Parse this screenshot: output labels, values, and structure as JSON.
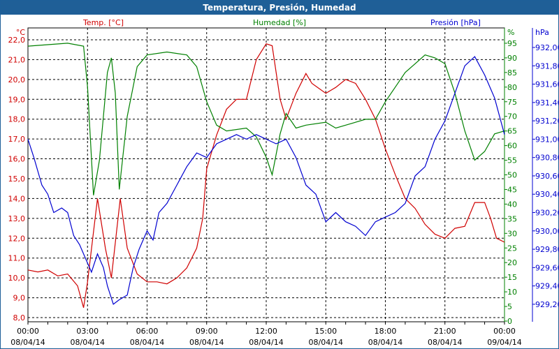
{
  "chart_data": {
    "type": "line",
    "title": "Temperatura, Presión, Humedad",
    "axes": {
      "temp": {
        "label": "Temp. [°C]",
        "unit": "°C",
        "range": [
          8,
          22
        ],
        "ticks": [
          "22,0",
          "21,0",
          "20,0",
          "19,0",
          "18,0",
          "17,0",
          "16,0",
          "15,0",
          "14,0",
          "13,0",
          "12,0",
          "11,0",
          "10,0",
          "9,0",
          "8,0"
        ],
        "color": "#d00000"
      },
      "humidity": {
        "label": "Humedad [%]",
        "unit": "%",
        "range": [
          0,
          95
        ],
        "ticks": [
          "95",
          "90",
          "85",
          "80",
          "75",
          "70",
          "65",
          "60",
          "55",
          "50",
          "45",
          "40",
          "35",
          "30",
          "25",
          "20",
          "15",
          "10",
          "5",
          "0"
        ],
        "color": "#008000"
      },
      "pressure": {
        "label": "Presión [hPa]",
        "unit": "hPa",
        "range": [
          929.2,
          932.0
        ],
        "ticks": [
          "932,00",
          "931,80",
          "931,60",
          "931,40",
          "931,20",
          "931,00",
          "930,80",
          "930,60",
          "930,40",
          "930,20",
          "930,00",
          "929,80",
          "929,60",
          "929,40",
          "929,20"
        ],
        "color": "#0000d0"
      }
    },
    "x_ticks": [
      [
        "00:00",
        "08/04/14"
      ],
      [
        "03:00",
        "08/04/14"
      ],
      [
        "06:00",
        "08/04/14"
      ],
      [
        "09:00",
        "08/04/14"
      ],
      [
        "12:00",
        "08/04/14"
      ],
      [
        "15:00",
        "08/04/14"
      ],
      [
        "18:00",
        "08/04/14"
      ],
      [
        "21:00",
        "08/04/14"
      ],
      [
        "00:00",
        "09/04/14"
      ]
    ],
    "grid": true,
    "series": [
      {
        "name": "Temp. [°C]",
        "axis": "temp",
        "color": "#d00000",
        "x": [
          0,
          0.5,
          1,
          1.5,
          2,
          2.5,
          2.8,
          3,
          3.5,
          3.9,
          4.2,
          4.65,
          5,
          5.5,
          6,
          6.5,
          7,
          7.5,
          8,
          8.5,
          8.8,
          9,
          9.5,
          10,
          10.5,
          11,
          11.5,
          12,
          12.3,
          12.7,
          13,
          13.5,
          14,
          14.3,
          15,
          15.5,
          16,
          16.5,
          17,
          17.5,
          18,
          18.5,
          19,
          19.5,
          20,
          20.5,
          21,
          21.5,
          22,
          22.5,
          23,
          23.3,
          23.6,
          24
        ],
        "values": [
          10.4,
          10.3,
          10.4,
          10.1,
          10.2,
          9.6,
          8.5,
          9.8,
          14,
          11.5,
          10,
          14,
          11.5,
          10.2,
          9.8,
          9.8,
          9.7,
          10,
          10.5,
          11.5,
          13,
          15.5,
          17.2,
          18.5,
          19,
          19,
          21,
          21.8,
          21.7,
          19,
          18,
          19.3,
          20.3,
          19.8,
          19.3,
          19.6,
          20,
          19.8,
          19,
          18,
          16.5,
          15.2,
          14,
          13.5,
          12.7,
          12.2,
          12,
          12.5,
          12.6,
          13.8,
          13.8,
          13,
          12,
          11.8
        ]
      },
      {
        "name": "Humedad [%]",
        "axis": "humidity",
        "color": "#008000",
        "x": [
          0,
          1,
          2,
          2.8,
          3,
          3.3,
          3.6,
          4,
          4.2,
          4.4,
          4.6,
          5,
          5.5,
          6,
          7,
          8,
          8.5,
          9,
          9.5,
          10,
          11,
          11.5,
          12,
          12.3,
          12.7,
          13,
          13.5,
          14,
          15,
          15.5,
          16,
          17,
          17.5,
          18,
          18.5,
          19,
          19.5,
          20,
          20.5,
          21,
          21.5,
          22,
          22.5,
          23,
          23.5,
          24
        ],
        "values": [
          94,
          94.5,
          95,
          94,
          80,
          43,
          55,
          85,
          90,
          78,
          45,
          70,
          87,
          91,
          92,
          91,
          87,
          75,
          67,
          65,
          66,
          63,
          56,
          50,
          64,
          71,
          66,
          67,
          68,
          66,
          67,
          69,
          69,
          75,
          80,
          85,
          88,
          91,
          90,
          88,
          78,
          65,
          55,
          58,
          64,
          65
        ]
      },
      {
        "name": "Presión [hPa]",
        "axis": "pressure",
        "color": "#0000d0",
        "x": [
          0,
          0.3,
          0.7,
          1,
          1.3,
          1.7,
          2,
          2.3,
          2.6,
          2.9,
          3.2,
          3.5,
          3.8,
          4,
          4.3,
          4.6,
          5,
          5.3,
          5.6,
          6,
          6.3,
          6.6,
          7,
          7.5,
          8,
          8.5,
          9,
          9.5,
          10,
          10.5,
          11,
          11.5,
          12,
          12.5,
          13,
          13.5,
          14,
          14.5,
          15,
          15.5,
          16,
          16.5,
          17,
          17.5,
          18,
          18.5,
          19,
          19.5,
          20,
          20.5,
          21,
          21.5,
          22,
          22.5,
          23,
          23.5,
          24
        ],
        "values": [
          931.0,
          930.8,
          930.5,
          930.4,
          930.2,
          930.25,
          930.2,
          929.95,
          929.85,
          929.7,
          929.55,
          929.75,
          929.6,
          929.4,
          929.2,
          929.25,
          929.3,
          929.6,
          929.8,
          930.0,
          929.9,
          930.2,
          930.3,
          930.5,
          930.7,
          930.85,
          930.8,
          930.95,
          931.0,
          931.05,
          931.0,
          931.05,
          931.0,
          930.95,
          931.0,
          930.8,
          930.5,
          930.4,
          930.1,
          930.2,
          930.1,
          930.05,
          929.95,
          930.1,
          930.15,
          930.2,
          930.3,
          930.6,
          930.7,
          931.0,
          931.2,
          931.5,
          931.8,
          931.9,
          931.7,
          931.45,
          931.05
        ]
      }
    ]
  }
}
